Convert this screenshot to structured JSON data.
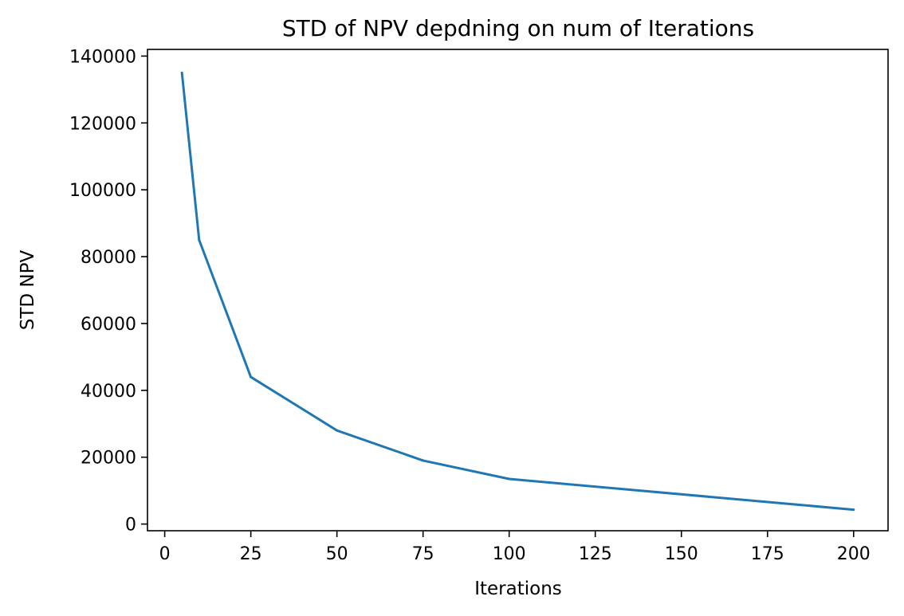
{
  "chart_data": {
    "type": "line",
    "title": "STD of NPV depdning on num of Iterations",
    "xlabel": "Iterations",
    "ylabel": "STD NPV",
    "xlim": [
      -5,
      210
    ],
    "ylim": [
      -2000,
      142000
    ],
    "xticks": [
      0,
      25,
      50,
      75,
      100,
      125,
      150,
      175,
      200
    ],
    "yticks": [
      0,
      20000,
      40000,
      60000,
      80000,
      100000,
      120000,
      140000
    ],
    "grid": false,
    "legend": "none",
    "series": [
      {
        "color": "#1f77b4",
        "x": [
          5,
          10,
          25,
          50,
          75,
          100,
          200
        ],
        "y": [
          135000,
          85000,
          44000,
          28000,
          19000,
          13500,
          4300
        ]
      }
    ]
  }
}
